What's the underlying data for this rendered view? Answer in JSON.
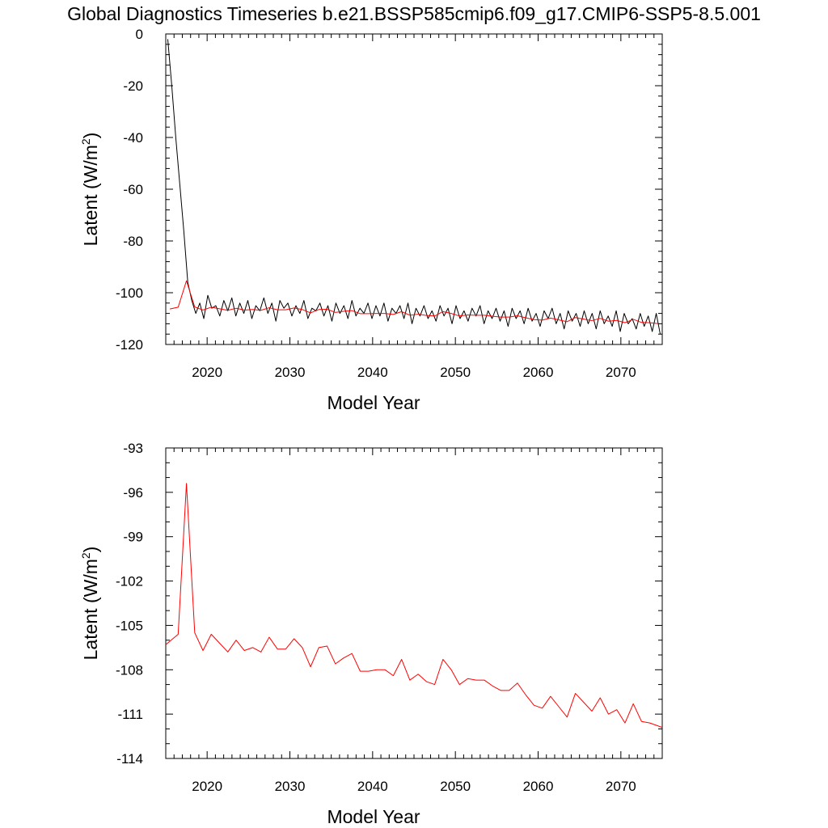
{
  "title": "Global Diagnostics Timeseries b.e21.BSSP585cmip6.f09_g17.CMIP6-SSP5-8.5.001",
  "chart_data": [
    {
      "type": "line",
      "xlabel": "Model Year",
      "ylabel": "Latent (W/m",
      "ylabel_superscript": "2",
      "ylabel_close": ")",
      "xlim": [
        2015,
        2075
      ],
      "ylim": [
        -120,
        0
      ],
      "x_ticks": [
        2020,
        2030,
        2040,
        2050,
        2060,
        2070
      ],
      "y_ticks": [
        0,
        -20,
        -40,
        -60,
        -80,
        -100,
        -120
      ],
      "grid": false,
      "series": [
        {
          "color": "#000000",
          "style": "monthly",
          "values": [
            -2,
            -20,
            -40,
            -58,
            -76,
            -96,
            -103,
            -108,
            -104,
            -110,
            -101,
            -106,
            -105,
            -109,
            -103,
            -107,
            -102,
            -109,
            -104,
            -108,
            -103,
            -110,
            -105,
            -107,
            -102,
            -108,
            -104,
            -111,
            -103,
            -106,
            -104,
            -109,
            -105,
            -108,
            -103,
            -110,
            -106,
            -107,
            -104,
            -109,
            -105,
            -111,
            -104,
            -108,
            -105,
            -110,
            -103,
            -109,
            -106,
            -108,
            -104,
            -110,
            -105,
            -109,
            -104,
            -111,
            -106,
            -108,
            -105,
            -110,
            -104,
            -112,
            -106,
            -109,
            -105,
            -110,
            -107,
            -111,
            -105,
            -109,
            -106,
            -112,
            -105,
            -110,
            -107,
            -111,
            -106,
            -109,
            -105,
            -112,
            -107,
            -110,
            -106,
            -111,
            -107,
            -113,
            -106,
            -110,
            -107,
            -112,
            -106,
            -111,
            -108,
            -113,
            -107,
            -110,
            -106,
            -112,
            -108,
            -114,
            -107,
            -111,
            -108,
            -113,
            -107,
            -112,
            -108,
            -114,
            -107,
            -112,
            -109,
            -113,
            -107,
            -115,
            -108,
            -112,
            -110,
            -114,
            -108,
            -113,
            -109,
            -115,
            -108,
            -116
          ]
        },
        {
          "color": "#ff0000",
          "style": "annual",
          "x": [
            2015.5,
            2016.5,
            2017.5,
            2018.5,
            2019.5,
            2020.5,
            2021.5,
            2022.5,
            2023.5,
            2024.5,
            2025.5,
            2026.5,
            2027.5,
            2028.5,
            2029.5,
            2030.5,
            2031.5,
            2032.5,
            2033.5,
            2034.5,
            2035.5,
            2036.5,
            2037.5,
            2038.5,
            2039.5,
            2040.5,
            2041.5,
            2042.5,
            2043.5,
            2044.5,
            2045.5,
            2046.5,
            2047.5,
            2048.5,
            2049.5,
            2050.5,
            2051.5,
            2052.5,
            2053.5,
            2054.5,
            2055.5,
            2056.5,
            2057.5,
            2058.5,
            2059.5,
            2060.5,
            2061.5,
            2062.5,
            2063.5,
            2064.5,
            2065.5,
            2066.5,
            2067.5,
            2068.5,
            2069.5,
            2070.5,
            2071.5,
            2072.5,
            2073.5,
            2074.5
          ],
          "values": [
            -106.3,
            -105.6,
            -95.4,
            -105.5,
            -106.7,
            -105.6,
            -106.2,
            -106.8,
            -106.0,
            -106.7,
            -106.5,
            -106.8,
            -105.8,
            -106.6,
            -106.6,
            -105.9,
            -106.5,
            -107.8,
            -106.5,
            -106.4,
            -107.6,
            -107.2,
            -106.9,
            -108.1,
            -108.1,
            -108.0,
            -108.0,
            -108.4,
            -107.3,
            -108.7,
            -108.3,
            -108.8,
            -109.0,
            -107.3,
            -108.0,
            -109.0,
            -108.6,
            -108.7,
            -108.7,
            -109.1,
            -109.4,
            -109.4,
            -108.9,
            -109.7,
            -110.4,
            -110.6,
            -109.8,
            -110.5,
            -111.2,
            -109.6,
            -110.2,
            -110.8,
            -109.9,
            -111.0,
            -110.7,
            -111.6,
            -110.3,
            -111.5,
            -111.6,
            -111.9
          ]
        }
      ]
    },
    {
      "type": "line",
      "xlabel": "Model Year",
      "ylabel": "Latent (W/m",
      "ylabel_superscript": "2",
      "ylabel_close": ")",
      "xlim": [
        2015,
        2075
      ],
      "ylim": [
        -114,
        -93
      ],
      "x_ticks": [
        2020,
        2030,
        2040,
        2050,
        2060,
        2070
      ],
      "y_ticks": [
        -93,
        -96,
        -99,
        -102,
        -105,
        -108,
        -111,
        -114
      ],
      "grid": false,
      "series": [
        {
          "color": "#ff0000",
          "style": "annual",
          "x": [
            2015.0,
            2016.5,
            2017.5,
            2018.5,
            2019.5,
            2020.5,
            2021.5,
            2022.5,
            2023.5,
            2024.5,
            2025.5,
            2026.5,
            2027.5,
            2028.5,
            2029.5,
            2030.5,
            2031.5,
            2032.5,
            2033.5,
            2034.5,
            2035.5,
            2036.5,
            2037.5,
            2038.5,
            2039.5,
            2040.5,
            2041.5,
            2042.5,
            2043.5,
            2044.5,
            2045.5,
            2046.5,
            2047.5,
            2048.5,
            2049.5,
            2050.5,
            2051.5,
            2052.5,
            2053.5,
            2054.5,
            2055.5,
            2056.5,
            2057.5,
            2058.5,
            2059.5,
            2060.5,
            2061.5,
            2062.5,
            2063.5,
            2064.5,
            2065.5,
            2066.5,
            2067.5,
            2068.5,
            2069.5,
            2070.5,
            2071.5,
            2072.5,
            2073.5,
            2075.0
          ],
          "values": [
            -106.3,
            -105.6,
            -95.4,
            -105.5,
            -106.7,
            -105.6,
            -106.2,
            -106.8,
            -106.0,
            -106.7,
            -106.5,
            -106.8,
            -105.8,
            -106.6,
            -106.6,
            -105.9,
            -106.5,
            -107.8,
            -106.5,
            -106.4,
            -107.6,
            -107.2,
            -106.9,
            -108.1,
            -108.1,
            -108.0,
            -108.0,
            -108.4,
            -107.3,
            -108.7,
            -108.3,
            -108.8,
            -109.0,
            -107.3,
            -108.0,
            -109.0,
            -108.6,
            -108.7,
            -108.7,
            -109.1,
            -109.4,
            -109.4,
            -108.9,
            -109.7,
            -110.4,
            -110.6,
            -109.8,
            -110.5,
            -111.2,
            -109.6,
            -110.2,
            -110.8,
            -109.9,
            -111.0,
            -110.7,
            -111.6,
            -110.3,
            -111.5,
            -111.6,
            -111.9
          ]
        }
      ]
    }
  ]
}
